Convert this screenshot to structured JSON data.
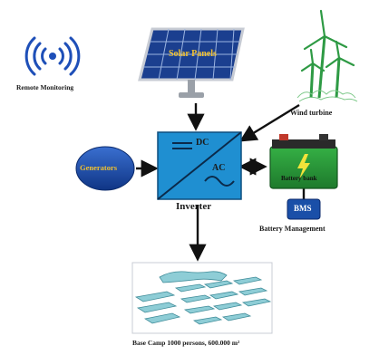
{
  "remote_monitoring": {
    "label": "Remote Monitoring",
    "icon": "wireless-signal-icon"
  },
  "solar_panels": {
    "label": "Solar Panels",
    "icon": "solar-panel-icon"
  },
  "wind_turbine": {
    "label": "Wind turbine",
    "icon": "wind-turbine-icon"
  },
  "generators": {
    "label": "Generators"
  },
  "inverter": {
    "dc_label": "DC",
    "ac_label": "AC",
    "label": "Inverter"
  },
  "battery": {
    "label": "Battery bank",
    "icon": "battery-icon"
  },
  "bms": {
    "box_label": "BMS",
    "label": "Battery Management"
  },
  "base_camp": {
    "label": "Base Camp 1000 persons, 600.000 m²",
    "icon": "base-camp-tents-icon"
  },
  "colors": {
    "inverter_fill": "#1f8fd1",
    "generator_fill": "#1a4fa8",
    "generator_text": "#f2c230",
    "battery_green": "#2a9d3a",
    "bms_fill": "#1a4fa8",
    "solar_label": "#f2c230",
    "camp_fill": "#8ecdd6",
    "arrow": "#111111",
    "wireless_blue": "#1e4fb8"
  }
}
